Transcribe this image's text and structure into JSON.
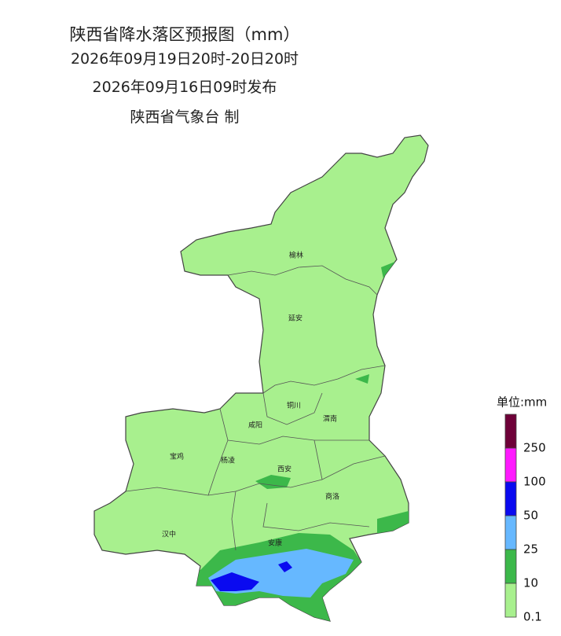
{
  "title": {
    "lines": [
      "陕西省降水落区预报图（mm）",
      "2026年09月19日20时-20日20时",
      "2026年09月16日09时发布",
      "陕西省气象台 制"
    ]
  },
  "cities": [
    "榆林",
    "延安",
    "铜川",
    "渭南",
    "咸阳",
    "宝鸡",
    "杨凌",
    "西安",
    "商洛",
    "汉中",
    "安康"
  ],
  "legend": {
    "unit": "单位:mm",
    "levels": [
      {
        "label": "250",
        "color": "#6e0038"
      },
      {
        "label": "100",
        "color": "#ff1aff"
      },
      {
        "label": "50",
        "color": "#0a0af0"
      },
      {
        "label": "25",
        "color": "#66b8ff"
      },
      {
        "label": "10",
        "color": "#3cb84a"
      },
      {
        "label": "0.1",
        "color": "#a8f08e"
      }
    ]
  }
}
